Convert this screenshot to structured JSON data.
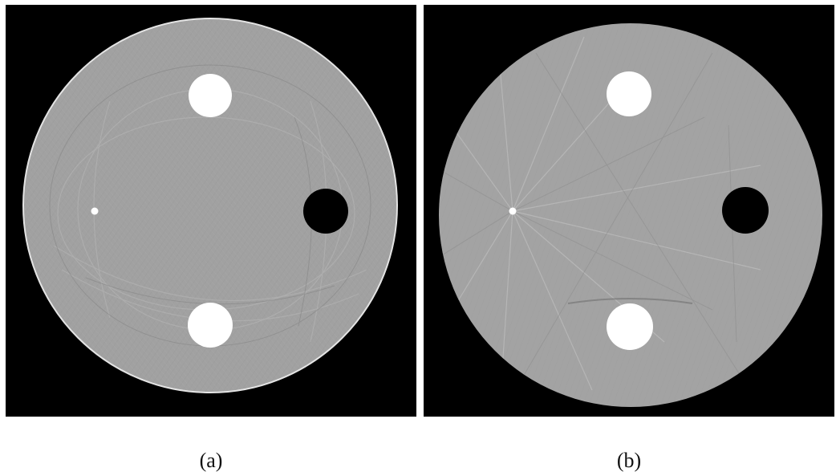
{
  "panels": [
    {
      "id": "a",
      "caption": "(a)"
    },
    {
      "id": "b",
      "caption": "(b)"
    }
  ],
  "colors": {
    "background": "#ffffff",
    "frame": "#000000",
    "phantom_gray": "#a1a1a1",
    "insert_bright": "#ffffff",
    "insert_dark": "#000000"
  }
}
